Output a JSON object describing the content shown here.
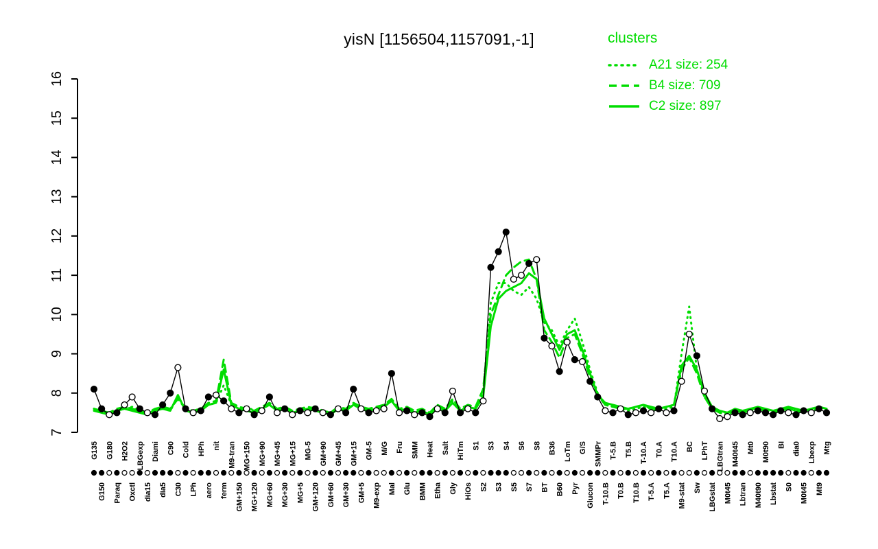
{
  "title": "yisN [1156504,1157091,-1]",
  "legend": {
    "title": "clusters",
    "color": "#00DD00",
    "entries": [
      {
        "label": "A21 size: 254",
        "style": "dotted"
      },
      {
        "label": "B4 size: 709",
        "style": "dashed"
      },
      {
        "label": "C2 size: 897",
        "style": "solid"
      }
    ]
  },
  "chart_data": {
    "type": "line",
    "title": "yisN [1156504,1157091,-1]",
    "xlabel": "",
    "ylabel": "",
    "ylim": [
      7,
      16
    ],
    "yticks": [
      7,
      8,
      9,
      10,
      11,
      12,
      13,
      14,
      15,
      16
    ],
    "grid": false,
    "legend_position": "top-right",
    "categories": [
      "G135",
      "G150",
      "G180",
      "Paraq",
      "H2O2",
      "Oxctl",
      "LBGexp",
      "dia15",
      "Diami",
      "dia5",
      "C90",
      "C30",
      "Cold",
      "LPh",
      "HPh",
      "aero",
      "nit",
      "ferm",
      "M9-tran",
      "GM+150",
      "MG+150",
      "MG+120",
      "MG+90",
      "MG+60",
      "MG+45",
      "MG+30",
      "MG+15",
      "MG+5",
      "MG-5",
      "GM+120",
      "GM+90",
      "GM+60",
      "GM+45",
      "GM+30",
      "GM+15",
      "GM+5",
      "GM-5",
      "M9-exp",
      "M/G",
      "Mal",
      "Fru",
      "Glu",
      "SMM",
      "BMM",
      "Heat",
      "Etha",
      "Salt",
      "Gly",
      "HiTm",
      "HiOs",
      "S1",
      "S2",
      "S3",
      "S3",
      "S4",
      "S5",
      "S6",
      "S7",
      "S8",
      "BT",
      "B36",
      "B60",
      "LoTm",
      "Pyr",
      "G/S",
      "Glucon",
      "SMMPr",
      "T-10.B",
      "T-5.B",
      "T0.B",
      "T5.B",
      "T10.B",
      "T-10.A",
      "T-5.A",
      "T0.A",
      "T5.A",
      "T10.A",
      "M9-stat",
      "BC",
      "Sw",
      "LPhT",
      "LBGstat",
      "LBGtran",
      "M0t45",
      "M40t45",
      "Lbtran",
      "Mt0",
      "M40t90",
      "M0t90",
      "Lbstat",
      "BI",
      "S0",
      "dia0",
      "M0t45",
      "Lbexp",
      "Mt9",
      "Mtg"
    ],
    "marker_filled": [
      true,
      true,
      false,
      true,
      false,
      false,
      true,
      false,
      true,
      true,
      true,
      false,
      true,
      false,
      true,
      true,
      false,
      true,
      false,
      true,
      false,
      true,
      false,
      true,
      false,
      true,
      false,
      true,
      false,
      true,
      false,
      true,
      false,
      true,
      true,
      false,
      true,
      false,
      false,
      true,
      false,
      true,
      false,
      true,
      true,
      false,
      true,
      false,
      true,
      false,
      true,
      false,
      true,
      true,
      true,
      false,
      false,
      true,
      false,
      true,
      false,
      true,
      false,
      true,
      false,
      true,
      true,
      false,
      true,
      false,
      true,
      false,
      true,
      false,
      true,
      false,
      true,
      false,
      false,
      true,
      false,
      true,
      false,
      false,
      true,
      true,
      false,
      true,
      true,
      true,
      true,
      false,
      true,
      true,
      false,
      true,
      true
    ],
    "series": [
      {
        "name": "yisN",
        "cluster": false,
        "color": "#000000",
        "style": "solid",
        "values": [
          8.1,
          7.6,
          7.45,
          7.5,
          7.7,
          7.9,
          7.6,
          7.5,
          7.45,
          7.7,
          8.0,
          8.65,
          7.6,
          7.5,
          7.55,
          7.9,
          7.95,
          7.8,
          7.6,
          7.5,
          7.6,
          7.45,
          7.55,
          7.9,
          7.5,
          7.6,
          7.45,
          7.55,
          7.5,
          7.6,
          7.5,
          7.45,
          7.6,
          7.5,
          8.1,
          7.6,
          7.5,
          7.55,
          7.6,
          8.5,
          7.5,
          7.55,
          7.45,
          7.5,
          7.4,
          7.6,
          7.5,
          8.05,
          7.5,
          7.6,
          7.5,
          7.8,
          11.2,
          11.6,
          12.1,
          10.9,
          11.0,
          11.3,
          11.4,
          9.4,
          9.2,
          8.55,
          9.3,
          8.85,
          8.8,
          8.3,
          7.9,
          7.55,
          7.5,
          7.6,
          7.45,
          7.5,
          7.55,
          7.5,
          7.6,
          7.5,
          7.55,
          8.3,
          9.5,
          8.95,
          8.05,
          7.6,
          7.35,
          7.4,
          7.5,
          7.45,
          7.5,
          7.55,
          7.5,
          7.45,
          7.55,
          7.5,
          7.45,
          7.55,
          7.5,
          7.6,
          7.5
        ]
      },
      {
        "name": "A21",
        "cluster": true,
        "color": "#00DD00",
        "style": "dotted",
        "values": [
          7.6,
          7.55,
          7.5,
          7.55,
          7.6,
          7.65,
          7.55,
          7.5,
          7.55,
          7.6,
          7.55,
          7.9,
          7.6,
          7.55,
          7.6,
          7.7,
          7.75,
          8.2,
          7.7,
          7.6,
          7.65,
          7.55,
          7.6,
          7.7,
          7.55,
          7.6,
          7.5,
          7.55,
          7.6,
          7.65,
          7.55,
          7.5,
          7.6,
          7.55,
          7.7,
          7.6,
          7.55,
          7.6,
          7.65,
          7.8,
          7.55,
          7.6,
          7.5,
          7.55,
          7.45,
          7.65,
          7.55,
          7.8,
          7.55,
          7.65,
          7.6,
          8.0,
          10.3,
          10.8,
          10.8,
          10.6,
          10.5,
          10.7,
          10.4,
          9.8,
          9.6,
          9.2,
          9.6,
          9.9,
          9.3,
          8.6,
          8.0,
          7.7,
          7.65,
          7.6,
          7.55,
          7.6,
          7.65,
          7.6,
          7.55,
          7.6,
          7.65,
          9.0,
          10.2,
          8.6,
          7.9,
          7.6,
          7.5,
          7.45,
          7.55,
          7.5,
          7.55,
          7.6,
          7.55,
          7.5,
          7.55,
          7.6,
          7.55,
          7.5,
          7.55,
          7.6,
          7.55
        ]
      },
      {
        "name": "B4",
        "cluster": true,
        "color": "#00DD00",
        "style": "dashed",
        "values": [
          7.6,
          7.55,
          7.5,
          7.6,
          7.65,
          7.6,
          7.55,
          7.5,
          7.6,
          7.65,
          7.6,
          7.85,
          7.6,
          7.55,
          7.6,
          7.75,
          7.8,
          8.85,
          7.75,
          7.65,
          7.6,
          7.55,
          7.65,
          7.75,
          7.6,
          7.65,
          7.55,
          7.6,
          7.65,
          7.6,
          7.55,
          7.5,
          7.65,
          7.6,
          7.75,
          7.65,
          7.6,
          7.65,
          7.7,
          7.85,
          7.6,
          7.65,
          7.55,
          7.6,
          7.5,
          7.7,
          7.6,
          7.85,
          7.6,
          7.7,
          7.65,
          8.1,
          10.0,
          10.5,
          11.0,
          11.2,
          11.35,
          11.4,
          10.9,
          9.6,
          9.3,
          8.9,
          9.4,
          9.5,
          9.0,
          8.4,
          7.95,
          7.7,
          7.65,
          7.6,
          7.6,
          7.65,
          7.7,
          7.6,
          7.6,
          7.65,
          7.7,
          8.6,
          8.9,
          8.5,
          7.9,
          7.6,
          7.5,
          7.5,
          7.55,
          7.5,
          7.6,
          7.6,
          7.55,
          7.5,
          7.55,
          7.6,
          7.55,
          7.5,
          7.6,
          7.65,
          7.6
        ]
      },
      {
        "name": "C2",
        "cluster": true,
        "color": "#00DD00",
        "style": "solid",
        "values": [
          7.55,
          7.5,
          7.45,
          7.55,
          7.6,
          7.55,
          7.5,
          7.45,
          7.55,
          7.6,
          7.55,
          7.95,
          7.55,
          7.5,
          7.55,
          7.7,
          7.75,
          8.6,
          7.7,
          7.6,
          7.55,
          7.5,
          7.6,
          7.7,
          7.55,
          7.6,
          7.5,
          7.55,
          7.6,
          7.55,
          7.5,
          7.45,
          7.6,
          7.55,
          7.7,
          7.6,
          7.55,
          7.6,
          7.65,
          7.8,
          7.55,
          7.6,
          7.5,
          7.55,
          7.45,
          7.65,
          7.55,
          7.75,
          7.55,
          7.65,
          7.6,
          7.9,
          9.7,
          10.4,
          10.6,
          10.7,
          10.8,
          11.05,
          10.9,
          9.9,
          9.5,
          9.1,
          9.5,
          9.6,
          9.1,
          8.5,
          7.95,
          7.75,
          7.7,
          7.65,
          7.6,
          7.65,
          7.7,
          7.65,
          7.6,
          7.65,
          7.7,
          8.7,
          8.95,
          8.6,
          8.0,
          7.65,
          7.55,
          7.5,
          7.6,
          7.55,
          7.6,
          7.65,
          7.6,
          7.55,
          7.6,
          7.65,
          7.6,
          7.55,
          7.6,
          7.65,
          7.6
        ]
      }
    ]
  }
}
